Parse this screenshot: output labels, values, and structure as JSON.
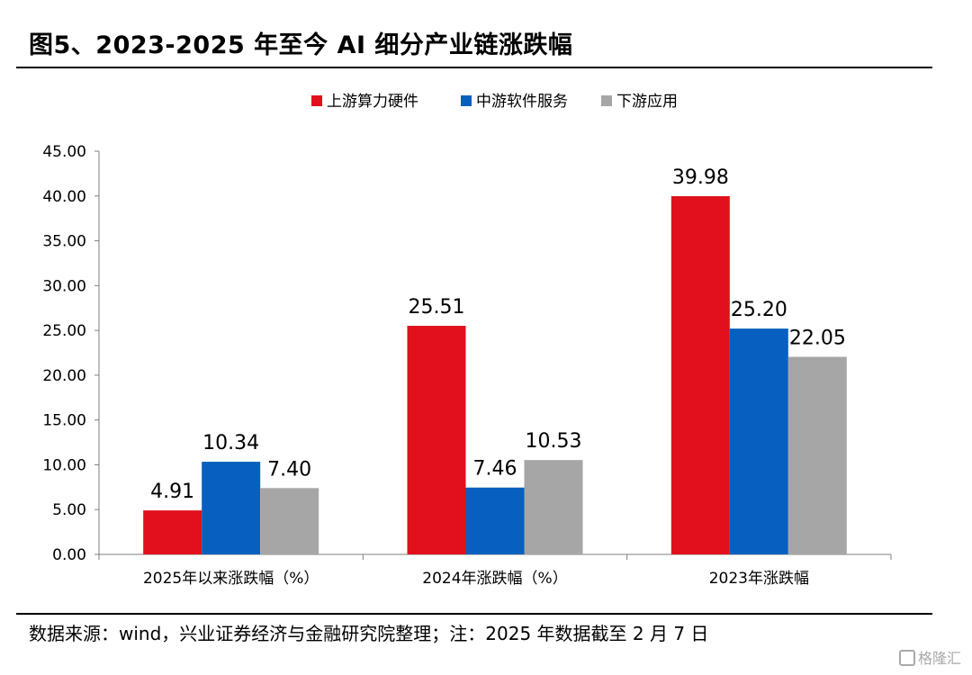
{
  "title": "图5、2023-2025 年至今 AI 细分产业链涨跌幅",
  "footer": "数据来源：wind，兴业证券经济与金融研究院整理；注：2025 年数据截至 2 月 7 日",
  "watermark": "格隆汇",
  "colors": {
    "upstream": "#e0111c",
    "midstream": "#0760bf",
    "downstream": "#a6a6a6"
  },
  "chart_data": {
    "type": "bar",
    "categories": [
      "2025年以来涨跌幅（%）",
      "2024年涨跌幅（%）",
      "2023年涨跌幅"
    ],
    "series": [
      {
        "name": "上游算力硬件",
        "values": [
          4.91,
          25.51,
          39.98
        ],
        "labels": [
          "4.91",
          "25.51",
          "39.98"
        ]
      },
      {
        "name": "中游软件服务",
        "values": [
          10.34,
          7.46,
          25.2
        ],
        "labels": [
          "10.34",
          "7.46",
          "25.20"
        ]
      },
      {
        "name": "下游应用",
        "values": [
          7.4,
          10.53,
          22.05
        ],
        "labels": [
          "7.40",
          "10.53",
          "22.05"
        ]
      }
    ],
    "yticks": [
      "0.00",
      "5.00",
      "10.00",
      "15.00",
      "20.00",
      "25.00",
      "30.00",
      "35.00",
      "40.00",
      "45.00"
    ],
    "ylim": [
      0,
      45
    ],
    "grid": false,
    "legend": "top-center"
  }
}
